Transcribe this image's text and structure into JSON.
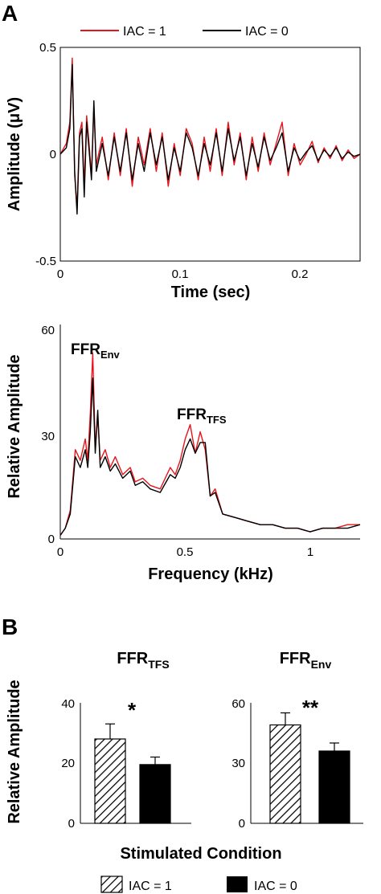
{
  "figure": {
    "panel_a_letter": "A",
    "panel_b_letter": "B",
    "legend_top": {
      "red_label": "IAC = 1",
      "black_label": "IAC = 0"
    },
    "legend_bottom": {
      "hatched_label": "IAC = 1",
      "solid_label": "IAC = 0"
    },
    "colors": {
      "iac1": "#e8141c",
      "iac0": "#000000"
    }
  },
  "chart_data": [
    {
      "type": "line",
      "xlabel": "Time (sec)",
      "ylabel": "Amplitude (μV)",
      "xlim": [
        0,
        0.25
      ],
      "ylim": [
        -0.5,
        0.5
      ],
      "xticks": [
        "0",
        "0.1",
        "0.2"
      ],
      "yticks": [
        "-0.5",
        "0",
        "0.5"
      ],
      "legend": "top, outside above plot",
      "grid": false,
      "series": [
        {
          "name": "IAC = 1",
          "x": [
            0.0,
            0.005,
            0.008,
            0.01,
            0.012,
            0.014,
            0.016,
            0.018,
            0.02,
            0.022,
            0.024,
            0.026,
            0.028,
            0.03,
            0.035,
            0.04,
            0.045,
            0.05,
            0.055,
            0.06,
            0.065,
            0.07,
            0.075,
            0.08,
            0.085,
            0.09,
            0.095,
            0.1,
            0.105,
            0.11,
            0.115,
            0.12,
            0.125,
            0.13,
            0.135,
            0.14,
            0.145,
            0.15,
            0.155,
            0.16,
            0.165,
            0.17,
            0.175,
            0.18,
            0.185,
            0.19,
            0.195,
            0.2,
            0.205,
            0.21,
            0.215,
            0.22,
            0.225,
            0.23,
            0.235,
            0.24,
            0.245,
            0.25
          ],
          "y": [
            0.0,
            0.05,
            0.15,
            0.45,
            -0.1,
            -0.25,
            0.1,
            0.15,
            -0.15,
            0.18,
            0.05,
            -0.1,
            0.22,
            -0.05,
            0.08,
            -0.12,
            0.1,
            -0.1,
            0.12,
            -0.15,
            0.08,
            -0.05,
            0.12,
            -0.08,
            0.1,
            -0.15,
            0.05,
            -0.1,
            0.12,
            0.05,
            -0.12,
            0.08,
            -0.08,
            0.12,
            -0.1,
            0.15,
            -0.05,
            0.1,
            -0.12,
            0.08,
            -0.08,
            0.1,
            -0.05,
            0.05,
            0.15,
            -0.1,
            0.05,
            -0.05,
            0.0,
            0.06,
            -0.04,
            0.03,
            -0.02,
            0.04,
            -0.03,
            0.02,
            -0.02,
            0.0
          ]
        },
        {
          "name": "IAC = 0",
          "x": [
            0.0,
            0.005,
            0.008,
            0.01,
            0.012,
            0.014,
            0.016,
            0.018,
            0.02,
            0.022,
            0.024,
            0.026,
            0.028,
            0.03,
            0.035,
            0.04,
            0.045,
            0.05,
            0.055,
            0.06,
            0.065,
            0.07,
            0.075,
            0.08,
            0.085,
            0.09,
            0.095,
            0.1,
            0.105,
            0.11,
            0.115,
            0.12,
            0.125,
            0.13,
            0.135,
            0.14,
            0.145,
            0.15,
            0.155,
            0.16,
            0.165,
            0.17,
            0.175,
            0.18,
            0.185,
            0.19,
            0.195,
            0.2,
            0.205,
            0.21,
            0.215,
            0.22,
            0.225,
            0.23,
            0.235,
            0.24,
            0.245,
            0.25
          ],
          "y": [
            0.0,
            0.03,
            0.12,
            0.42,
            -0.08,
            -0.28,
            0.08,
            0.12,
            -0.2,
            0.15,
            0.02,
            -0.12,
            0.25,
            -0.08,
            0.05,
            -0.1,
            0.08,
            -0.08,
            0.1,
            -0.12,
            0.05,
            -0.08,
            0.1,
            -0.05,
            0.08,
            -0.12,
            0.03,
            -0.08,
            0.1,
            0.03,
            -0.1,
            0.05,
            -0.05,
            0.1,
            -0.08,
            0.12,
            -0.03,
            0.08,
            -0.1,
            0.05,
            -0.06,
            0.08,
            -0.03,
            0.03,
            0.1,
            -0.08,
            0.03,
            -0.03,
            0.01,
            0.04,
            -0.03,
            0.02,
            -0.01,
            0.03,
            -0.02,
            0.01,
            -0.01,
            0.0
          ]
        }
      ]
    },
    {
      "type": "line",
      "xlabel": "Frequency (kHz)",
      "ylabel": "Relative Amplitude",
      "xlim": [
        0,
        1.2
      ],
      "ylim": [
        0,
        60
      ],
      "xticks": [
        "0",
        "0.5",
        "1"
      ],
      "yticks": [
        "0",
        "30",
        "60"
      ],
      "grid": false,
      "annotations": [
        {
          "label": "FFR",
          "subscript": "Env",
          "at_x": 0.13,
          "at_y": 52
        },
        {
          "label": "FFR",
          "subscript": "TFS",
          "at_x": 0.55,
          "at_y": 32
        }
      ],
      "series": [
        {
          "name": "IAC = 1",
          "x": [
            0.0,
            0.02,
            0.04,
            0.06,
            0.08,
            0.1,
            0.11,
            0.12,
            0.13,
            0.14,
            0.15,
            0.16,
            0.18,
            0.2,
            0.22,
            0.25,
            0.28,
            0.3,
            0.33,
            0.36,
            0.4,
            0.44,
            0.46,
            0.48,
            0.5,
            0.52,
            0.54,
            0.56,
            0.58,
            0.6,
            0.62,
            0.65,
            0.7,
            0.75,
            0.8,
            0.85,
            0.9,
            0.95,
            1.0,
            1.05,
            1.1,
            1.15,
            1.2
          ],
          "y": [
            1,
            3,
            8,
            25,
            22,
            28,
            22,
            35,
            52,
            26,
            34,
            22,
            25,
            20,
            23,
            18,
            20,
            16,
            17,
            15,
            14,
            20,
            18,
            22,
            28,
            32,
            24,
            30,
            25,
            12,
            14,
            7,
            6,
            5,
            4,
            4,
            3,
            3,
            2,
            3,
            3,
            4,
            4
          ]
        },
        {
          "name": "IAC = 0",
          "x": [
            0.0,
            0.02,
            0.04,
            0.06,
            0.08,
            0.1,
            0.11,
            0.12,
            0.13,
            0.14,
            0.15,
            0.16,
            0.18,
            0.2,
            0.22,
            0.25,
            0.28,
            0.3,
            0.33,
            0.36,
            0.4,
            0.44,
            0.46,
            0.48,
            0.5,
            0.52,
            0.54,
            0.56,
            0.58,
            0.6,
            0.62,
            0.65,
            0.7,
            0.75,
            0.8,
            0.85,
            0.9,
            0.95,
            1.0,
            1.05,
            1.1,
            1.15,
            1.2
          ],
          "y": [
            1,
            3,
            7,
            23,
            20,
            25,
            20,
            30,
            45,
            24,
            36,
            20,
            23,
            19,
            21,
            17,
            19,
            15,
            16,
            14,
            13,
            18,
            17,
            20,
            25,
            28,
            24,
            27,
            27,
            12,
            13,
            7,
            6,
            5,
            4,
            4,
            3,
            3,
            2,
            3,
            3,
            3,
            4
          ]
        }
      ]
    },
    {
      "type": "bar",
      "title": "FFR",
      "title_subscript": "TFS",
      "ylabel": "Relative Amplitude",
      "ylim": [
        0,
        40
      ],
      "yticks": [
        "0",
        "20",
        "40"
      ],
      "categories": [
        "IAC = 1",
        "IAC = 0"
      ],
      "values": [
        28,
        19.5
      ],
      "errors": [
        5,
        2.5
      ],
      "significance": "*"
    },
    {
      "type": "bar",
      "title": "FFR",
      "title_subscript": "Env",
      "ylim": [
        0,
        60
      ],
      "yticks": [
        "0",
        "30",
        "60"
      ],
      "categories": [
        "IAC = 1",
        "IAC = 0"
      ],
      "values": [
        49,
        36
      ],
      "errors": [
        6,
        4
      ],
      "significance": "**",
      "xlabel": "Stimulated Condition"
    }
  ]
}
